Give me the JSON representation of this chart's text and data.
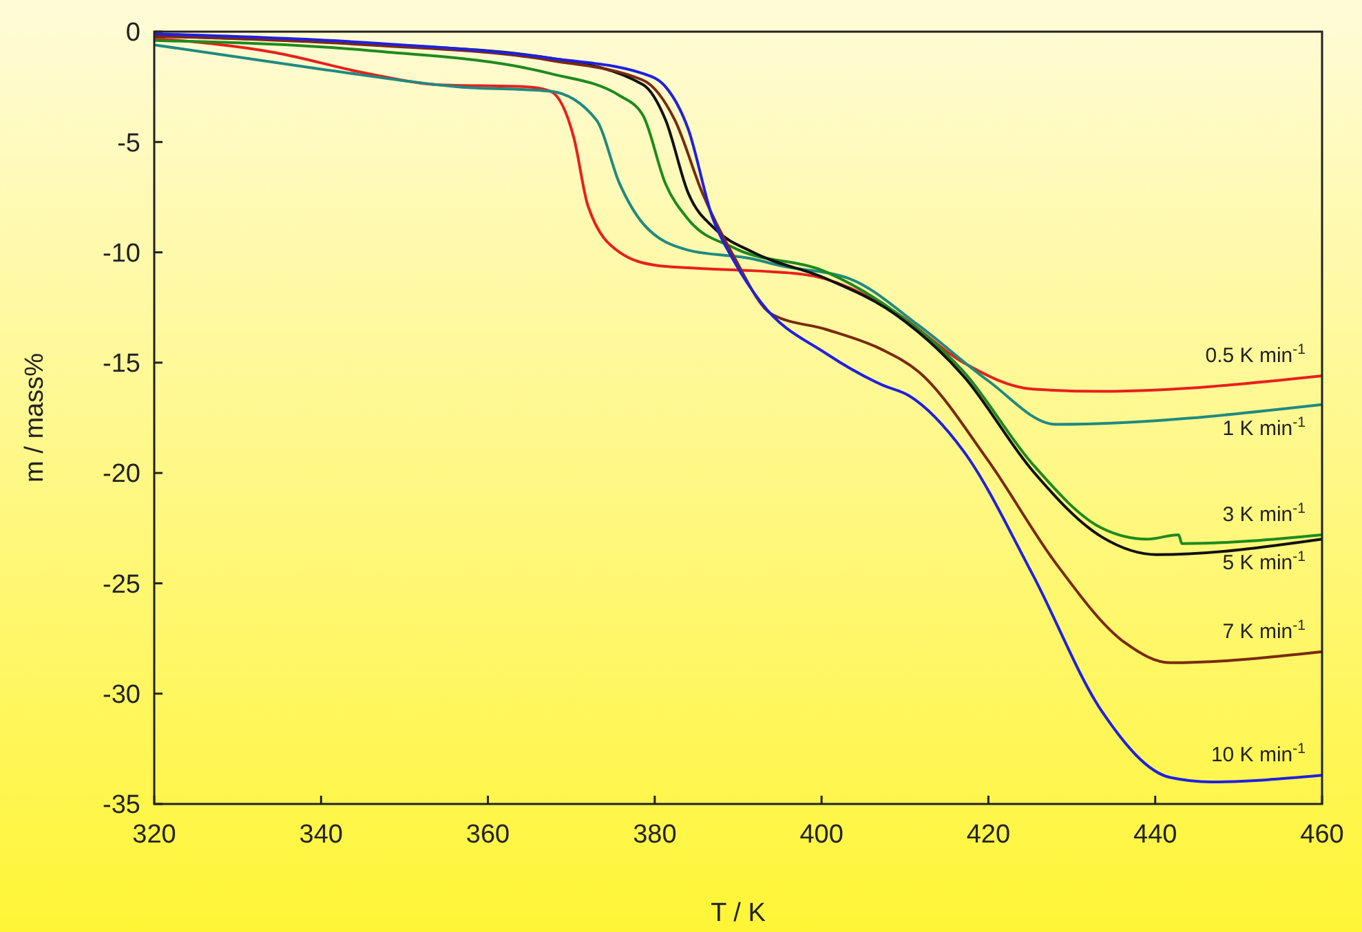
{
  "chart_data": {
    "type": "line",
    "xlabel": "T / K",
    "ylabel": "m / mass%",
    "xlim": [
      320,
      460
    ],
    "ylim": [
      -35,
      0
    ],
    "xticks": [
      320,
      340,
      360,
      380,
      400,
      420,
      440,
      460
    ],
    "yticks": [
      0,
      -5,
      -10,
      -15,
      -20,
      -25,
      -30,
      -35
    ],
    "grid": false,
    "marker": "none",
    "line_style": "solid",
    "series": [
      {
        "name": "0.5 K min$^{-1}$",
        "color": "#e8201c",
        "x": [
          320,
          334.5,
          345.6,
          353.8,
          364.7,
          367.5,
          370.3,
          372,
          375.8,
          380.3,
          384,
          397.8,
          408.8,
          417,
          425.3,
          433.6,
          460
        ],
        "values": [
          -0.3,
          -0.95,
          -1.9,
          -2.4,
          -2.5,
          -2.7,
          -4.8,
          -7.9,
          -10,
          -10.6,
          -10.7,
          -11,
          -12.7,
          -15,
          -16.2,
          -16.3,
          -15.6
        ]
      },
      {
        "name": "1 K min$^{-1}$",
        "color": "#1f8a80",
        "x": [
          320,
          340,
          356.5,
          367.5,
          373,
          375.8,
          378.6,
          384,
          391.8,
          395,
          403.4,
          411.6,
          419.9,
          428.1,
          460
        ],
        "values": [
          -0.6,
          -1.7,
          -2.5,
          -2.7,
          -4,
          -6.9,
          -8.7,
          -9.9,
          -10.3,
          -10.6,
          -11.2,
          -13.3,
          -15.8,
          -17.8,
          -16.9
        ]
      },
      {
        "name": "3 K min$^{-1}$",
        "color": "#1e8a1e",
        "x": [
          320,
          345.6,
          367.5,
          375.8,
          378.6,
          381.3,
          384,
          389.5,
          400.6,
          408.8,
          417,
          425.3,
          433.6,
          439,
          442.8,
          443.2,
          460
        ],
        "values": [
          -0.4,
          -0.85,
          -1.9,
          -2.9,
          -3.8,
          -6.9,
          -8.5,
          -9.8,
          -10.9,
          -12.7,
          -15.4,
          -19.6,
          -22.5,
          -23,
          -22.8,
          -23.2,
          -22.8
        ]
      },
      {
        "name": "5 K min$^{-1}$",
        "color": "#111111",
        "x": [
          320,
          345.6,
          367.5,
          378.6,
          381.3,
          384,
          387.4,
          391.8,
          400.6,
          408.8,
          417,
          425.3,
          433.6,
          440.2,
          460
        ],
        "values": [
          -0.2,
          -0.55,
          -1.2,
          -2.4,
          -4,
          -7.3,
          -9,
          -10,
          -11.2,
          -12.8,
          -15.6,
          -19.9,
          -22.9,
          -23.7,
          -23
        ]
      },
      {
        "name": "7 K min$^{-1}$",
        "color": "#7a2a10",
        "x": [
          320,
          345.6,
          367.5,
          378.6,
          382.4,
          385.7,
          389.5,
          394,
          400.6,
          407.2,
          411.6,
          419.9,
          428.1,
          436.4,
          441.8,
          460
        ],
        "values": [
          -0.2,
          -0.6,
          -1.3,
          -2.2,
          -4,
          -7.3,
          -10.2,
          -12.8,
          -13.5,
          -14.4,
          -15.4,
          -19.4,
          -24.1,
          -27.7,
          -28.6,
          -28.1
        ]
      },
      {
        "name": "10 K min$^{-1}$",
        "color": "#2020e0",
        "x": [
          320,
          345.6,
          367.5,
          378.6,
          381.3,
          384,
          386.9,
          389.5,
          392.8,
          400.6,
          407.2,
          410.5,
          417,
          425.3,
          433.6,
          441.8,
          446.7,
          460
        ],
        "values": [
          -0.1,
          -0.5,
          -1.2,
          -1.9,
          -2.5,
          -4.4,
          -8.4,
          -10.4,
          -12.3,
          -14.6,
          -16,
          -16.5,
          -19,
          -24.6,
          -30.8,
          -33.8,
          -34,
          -33.7
        ]
      }
    ]
  }
}
